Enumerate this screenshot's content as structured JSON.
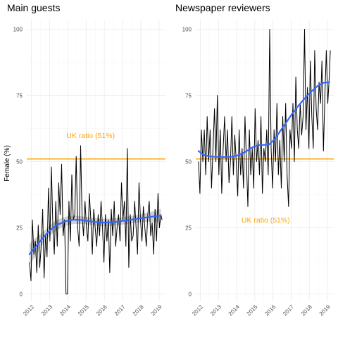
{
  "chart_data": [
    {
      "type": "line",
      "title": "Main guests",
      "ylabel": "Female (%)",
      "xlabel": "",
      "ylim": [
        0,
        100
      ],
      "yticks": [
        0,
        25,
        50,
        75,
        100
      ],
      "xlim": [
        2011.75,
        2019.35
      ],
      "xticks": [
        2012,
        2013,
        2014,
        2015,
        2016,
        2017,
        2018,
        2019
      ],
      "x_tick_labels": [
        "2012",
        "2013",
        "2014",
        "2015",
        "2016",
        "2017",
        "2018",
        "2019"
      ],
      "grid": true,
      "reference_line": {
        "y": 51,
        "label": "UK ratio (51%)",
        "label_y": 60,
        "label_x": 2015.25
      },
      "series": [
        {
          "kind": "raw",
          "x": [
            2011.9,
            2011.98,
            2012.06,
            2012.14,
            2012.22,
            2012.3,
            2012.38,
            2012.46,
            2012.54,
            2012.62,
            2012.7,
            2012.78,
            2012.86,
            2012.94,
            2013.02,
            2013.1,
            2013.18,
            2013.26,
            2013.34,
            2013.42,
            2013.5,
            2013.58,
            2013.66,
            2013.74,
            2013.82,
            2013.9,
            2013.98,
            2014.06,
            2014.14,
            2014.22,
            2014.3,
            2014.38,
            2014.46,
            2014.54,
            2014.62,
            2014.7,
            2014.78,
            2014.86,
            2014.94,
            2015.02,
            2015.1,
            2015.18,
            2015.26,
            2015.34,
            2015.42,
            2015.5,
            2015.58,
            2015.66,
            2015.74,
            2015.82,
            2015.9,
            2015.98,
            2016.06,
            2016.14,
            2016.22,
            2016.3,
            2016.38,
            2016.46,
            2016.54,
            2016.62,
            2016.7,
            2016.78,
            2016.86,
            2016.94,
            2017.02,
            2017.1,
            2017.18,
            2017.26,
            2017.34,
            2017.42,
            2017.5,
            2017.58,
            2017.66,
            2017.74,
            2017.82,
            2017.9,
            2017.98,
            2018.06,
            2018.14,
            2018.22,
            2018.3,
            2018.38,
            2018.46,
            2018.54,
            2018.62,
            2018.7,
            2018.78,
            2018.86,
            2018.94,
            2019.02,
            2019.1,
            2019.16
          ],
          "y": [
            12,
            5,
            28,
            15,
            20,
            8,
            26,
            10,
            18,
            32,
            6,
            22,
            14,
            40,
            20,
            48,
            25,
            15,
            35,
            18,
            42,
            30,
            49,
            22,
            28,
            0,
            0,
            35,
            20,
            45,
            28,
            30,
            52,
            25,
            18,
            56,
            30,
            22,
            35,
            25,
            20,
            38,
            28,
            15,
            32,
            25,
            18,
            30,
            22,
            35,
            25,
            12,
            30,
            20,
            28,
            8,
            32,
            22,
            35,
            18,
            25,
            30,
            20,
            42,
            28,
            35,
            18,
            55,
            10,
            30,
            20,
            22,
            35,
            25,
            15,
            42,
            28,
            20,
            33,
            25,
            18,
            30,
            35,
            22,
            27,
            15,
            32,
            20,
            38,
            25,
            30,
            28
          ]
        },
        {
          "kind": "smooth",
          "x": [
            2011.9,
            2012.2,
            2012.5,
            2012.8,
            2013.1,
            2013.4,
            2013.7,
            2014.0,
            2014.3,
            2014.6,
            2014.9,
            2015.2,
            2015.5,
            2015.8,
            2016.1,
            2016.4,
            2016.7,
            2017.0,
            2017.3,
            2017.6,
            2017.9,
            2018.2,
            2018.5,
            2018.8,
            2019.1
          ],
          "y": [
            15,
            17.5,
            20,
            22.5,
            24.5,
            26,
            27,
            27.7,
            28,
            28,
            27.8,
            27.5,
            27.2,
            27,
            27,
            27.1,
            27.3,
            27.6,
            27.9,
            28.2,
            28.5,
            28.8,
            29.1,
            29.4,
            29.6
          ],
          "lower": [
            11,
            14,
            17.5,
            20.5,
            22.5,
            24,
            25.3,
            26,
            26.4,
            26.5,
            26.4,
            26.1,
            25.8,
            25.6,
            25.6,
            25.7,
            25.9,
            26.2,
            26.5,
            26.8,
            27,
            27.2,
            27.3,
            27.3,
            27
          ],
          "upper": [
            19,
            21,
            22.5,
            24.5,
            26.5,
            28,
            28.7,
            29.4,
            29.6,
            29.5,
            29.2,
            28.9,
            28.6,
            28.4,
            28.4,
            28.5,
            28.7,
            29,
            29.3,
            29.6,
            30,
            30.4,
            30.9,
            31.5,
            32.2
          ]
        }
      ]
    },
    {
      "type": "line",
      "title": "Newspaper reviewers",
      "ylabel": "",
      "xlabel": "",
      "ylim": [
        0,
        100
      ],
      "yticks": [
        0,
        25,
        50,
        75,
        100
      ],
      "xlim": [
        2011.75,
        2019.35
      ],
      "xticks": [
        2012,
        2013,
        2014,
        2015,
        2016,
        2017,
        2018,
        2019
      ],
      "x_tick_labels": [
        "2012",
        "2013",
        "2014",
        "2015",
        "2016",
        "2017",
        "2018",
        "2019"
      ],
      "grid": true,
      "reference_line": {
        "y": 51,
        "label": "UK ratio (51%)",
        "label_y": 28,
        "label_x": 2015.6
      },
      "series": [
        {
          "kind": "raw",
          "x": [
            2011.9,
            2011.98,
            2012.06,
            2012.14,
            2012.22,
            2012.3,
            2012.38,
            2012.46,
            2012.54,
            2012.62,
            2012.7,
            2012.78,
            2012.86,
            2012.94,
            2013.02,
            2013.1,
            2013.18,
            2013.26,
            2013.34,
            2013.42,
            2013.5,
            2013.58,
            2013.66,
            2013.74,
            2013.82,
            2013.9,
            2013.98,
            2014.06,
            2014.14,
            2014.22,
            2014.3,
            2014.38,
            2014.46,
            2014.54,
            2014.62,
            2014.7,
            2014.78,
            2014.86,
            2014.94,
            2015.02,
            2015.1,
            2015.18,
            2015.26,
            2015.34,
            2015.42,
            2015.5,
            2015.58,
            2015.66,
            2015.74,
            2015.82,
            2015.9,
            2015.98,
            2016.06,
            2016.14,
            2016.22,
            2016.3,
            2016.38,
            2016.46,
            2016.54,
            2016.62,
            2016.7,
            2016.78,
            2016.86,
            2016.94,
            2017.02,
            2017.1,
            2017.18,
            2017.26,
            2017.34,
            2017.42,
            2017.5,
            2017.58,
            2017.66,
            2017.74,
            2017.82,
            2017.9,
            2017.98,
            2018.06,
            2018.14,
            2018.22,
            2018.3,
            2018.38,
            2018.46,
            2018.54,
            2018.62,
            2018.7,
            2018.78,
            2018.86,
            2018.94,
            2019.02,
            2019.1,
            2019.16
          ],
          "y": [
            50,
            38,
            62,
            50,
            62,
            45,
            67,
            50,
            62,
            40,
            55,
            70,
            50,
            75,
            45,
            62,
            38,
            55,
            67,
            50,
            62,
            42,
            50,
            67,
            45,
            60,
            50,
            37,
            62,
            45,
            55,
            40,
            67,
            50,
            33,
            62,
            45,
            55,
            40,
            70,
            50,
            58,
            45,
            67,
            38,
            55,
            50,
            62,
            45,
            100,
            55,
            40,
            62,
            50,
            72,
            45,
            58,
            40,
            67,
            50,
            72,
            45,
            33,
            62,
            55,
            72,
            50,
            82,
            62,
            55,
            72,
            60,
            67,
            100,
            62,
            78,
            55,
            88,
            67,
            55,
            92,
            70,
            62,
            80,
            72,
            88,
            54,
            75,
            92,
            72,
            82,
            92
          ]
        },
        {
          "kind": "smooth",
          "x": [
            2011.9,
            2012.2,
            2012.5,
            2012.8,
            2013.1,
            2013.4,
            2013.7,
            2014.0,
            2014.3,
            2014.6,
            2014.9,
            2015.2,
            2015.5,
            2015.8,
            2016.1,
            2016.4,
            2016.7,
            2017.0,
            2017.3,
            2017.6,
            2017.9,
            2018.2,
            2018.5,
            2018.8,
            2019.1
          ],
          "y": [
            54,
            52.5,
            52,
            51.8,
            51.7,
            51.7,
            51.8,
            52.2,
            53,
            54.2,
            55.5,
            56.2,
            56.3,
            56.5,
            58.5,
            61.5,
            64.5,
            67.5,
            70.2,
            72.7,
            75,
            77,
            78.8,
            79.8,
            80
          ]
        }
      ]
    }
  ],
  "colors": {
    "raw_line": "#000000",
    "smooth_line": "#3366FF",
    "confidence_band": "#999999",
    "reference_line": "#FFA500",
    "annotation_text": "#FFA500"
  }
}
